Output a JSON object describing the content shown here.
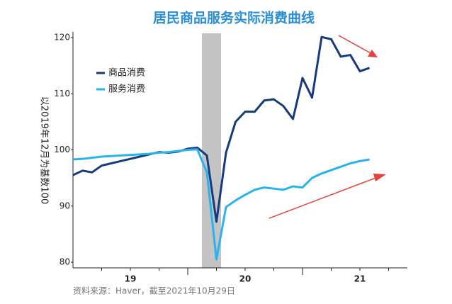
{
  "chart_data": {
    "type": "line",
    "title": "居民商品服务实际消费曲线",
    "y_label": "以2019年12月为基数100",
    "source": "资料来源：Haver，截至2021年10月29日",
    "categories": [
      null,
      null,
      null,
      null,
      null,
      null,
      "19",
      null,
      null,
      null,
      null,
      null,
      null,
      null,
      null,
      null,
      null,
      null,
      "20",
      null,
      null,
      null,
      null,
      null,
      null,
      null,
      null,
      null,
      null,
      null,
      "21",
      null
    ],
    "series": [
      {
        "name": "商品消费",
        "color": "#173a7c",
        "values": [
          95.5,
          96.3,
          96.0,
          97.2,
          97.6,
          98.0,
          98.4,
          98.8,
          99.2,
          99.6,
          99.5,
          99.7,
          100.2,
          100.4,
          99.0,
          87.2,
          99.5,
          105.0,
          106.8,
          106.8,
          108.8,
          109.0,
          107.8,
          105.5,
          112.8,
          109.3,
          120.1,
          119.7,
          116.6,
          116.9,
          114.0,
          114.6
        ]
      },
      {
        "name": "服务消费",
        "color": "#29b3ec",
        "values": [
          98.3,
          98.4,
          98.6,
          98.8,
          98.9,
          99.0,
          99.1,
          99.2,
          99.3,
          99.5,
          99.6,
          99.8,
          100.0,
          100.1,
          96.0,
          80.5,
          89.8,
          91.0,
          92.0,
          92.9,
          93.3,
          93.1,
          92.9,
          93.5,
          93.3,
          95.0,
          95.8,
          96.4,
          97.0,
          97.6,
          98.0,
          98.3
        ]
      }
    ],
    "ylim": [
      80,
      120
    ],
    "yticks": [
      80,
      90,
      100,
      110,
      120
    ],
    "grid": false,
    "legend": "upper left"
  }
}
